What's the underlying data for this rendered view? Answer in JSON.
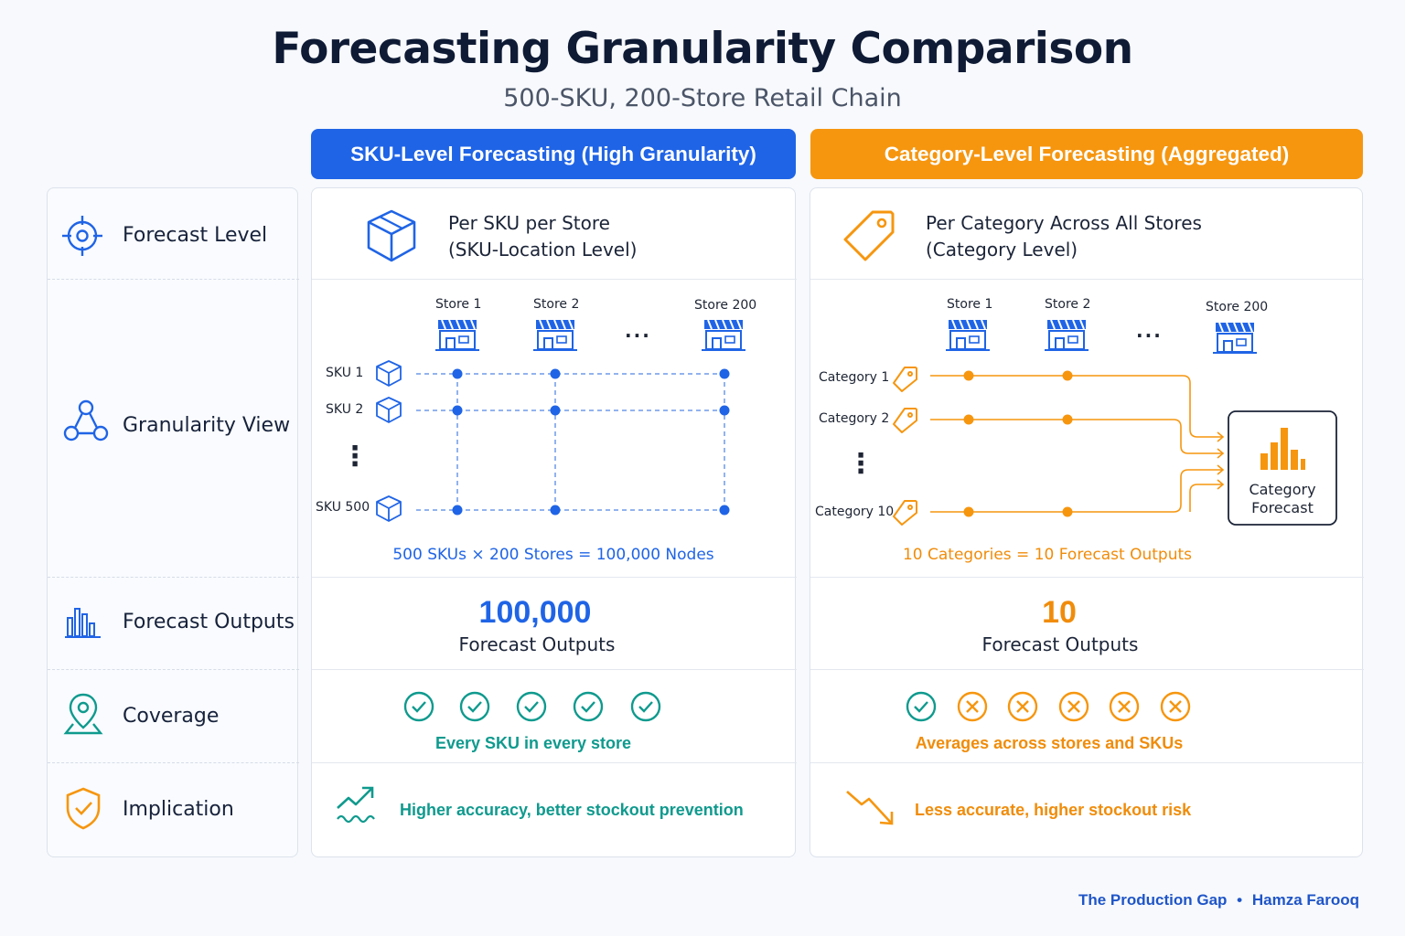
{
  "title": "Forecasting Granularity Comparison",
  "subtitle": "500-SKU, 200-Store Retail Chain",
  "columns": {
    "sku": {
      "header": "SKU-Level Forecasting (High Granularity)",
      "forecast_level_line1": "Per SKU per Store",
      "forecast_level_line2": "(SKU-Location Level)",
      "stores": [
        "Store 1",
        "Store 2",
        "Store 200"
      ],
      "skus": [
        "SKU 1",
        "SKU 2",
        "SKU 500"
      ],
      "ellipsis": "...",
      "vertical_ellipsis": "⋮",
      "caption": "500 SKUs × 200 Stores = 100,000 Nodes",
      "outputs_number": "100,000",
      "outputs_label": "Forecast Outputs",
      "coverage_text": "Every SKU in every store",
      "coverage_marks": [
        "check",
        "check",
        "check",
        "check",
        "check"
      ],
      "implication": "Higher accuracy, better stockout prevention",
      "color": "#1f64e6"
    },
    "category": {
      "header": "Category-Level Forecasting (Aggregated)",
      "forecast_level_line1": "Per Category Across All Stores",
      "forecast_level_line2": "(Category Level)",
      "stores": [
        "Store 1",
        "Store 2",
        "Store 200"
      ],
      "categories": [
        "Category 1",
        "Category 2",
        "Category 10"
      ],
      "ellipsis": "...",
      "vertical_ellipsis": "⋮",
      "forecast_box_line1": "Category",
      "forecast_box_line2": "Forecast",
      "caption": "10 Categories = 10 Forecast Outputs",
      "outputs_number": "10",
      "outputs_label": "Forecast Outputs",
      "coverage_text": "Averages across stores and SKUs",
      "coverage_marks": [
        "check",
        "cross",
        "cross",
        "cross",
        "cross",
        "cross"
      ],
      "implication": "Less accurate, higher stockout risk",
      "color": "#f6960f"
    }
  },
  "rows": [
    {
      "label": "Forecast Level",
      "icon": "target-icon"
    },
    {
      "label": "Granularity View",
      "icon": "network-icon"
    },
    {
      "label": "Forecast Outputs",
      "icon": "bar-chart-icon"
    },
    {
      "label": "Coverage",
      "icon": "map-pin-icon"
    },
    {
      "label": "Implication",
      "icon": "shield-check-icon"
    }
  ],
  "footer": {
    "source": "The Production Gap",
    "separator": "•",
    "author": "Hamza Farooq"
  },
  "colors": {
    "blue": "#1f64e6",
    "orange": "#f6960f",
    "teal": "#0f9a8e",
    "dark": "#0f1b35"
  }
}
